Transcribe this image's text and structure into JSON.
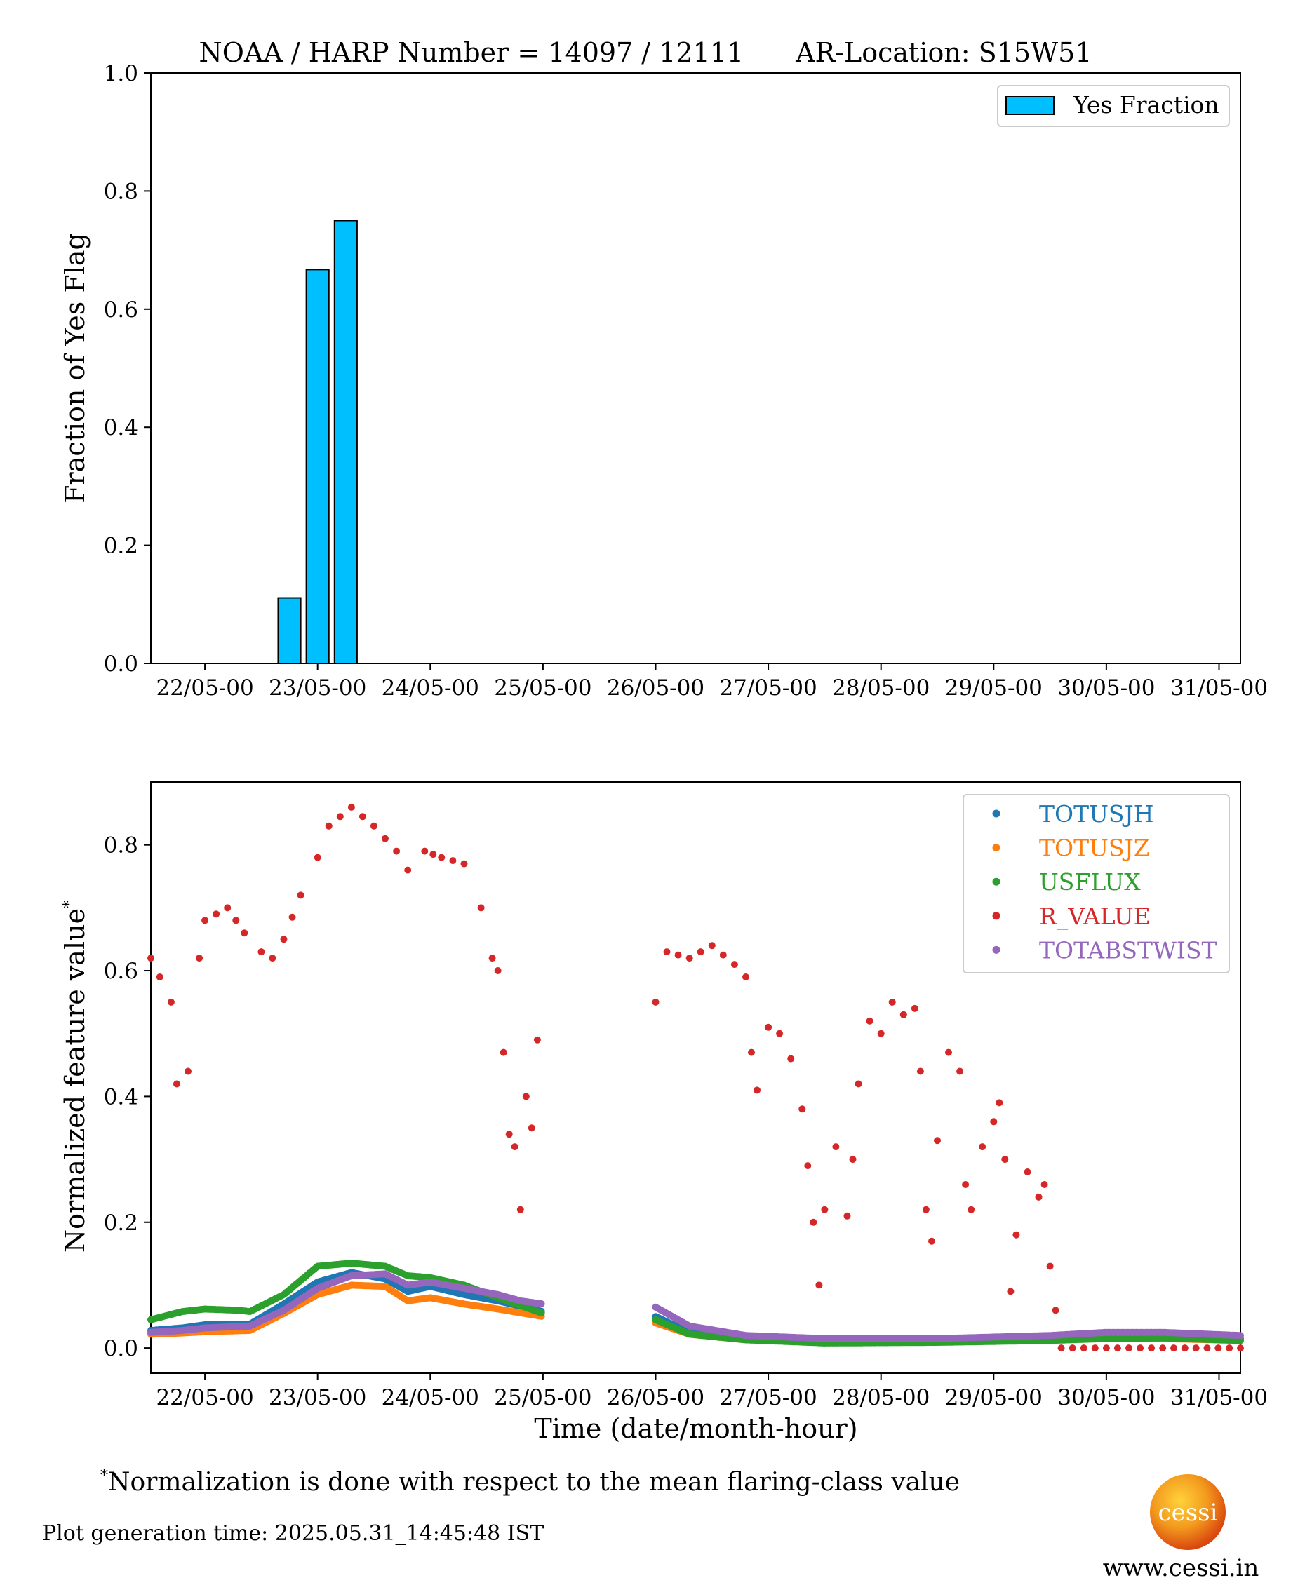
{
  "title": {
    "harp": "NOAA / HARP Number = 14097 / 12111",
    "location": "AR-Location: S15W51"
  },
  "footnote": {
    "marker": "*",
    "text": "Normalization is done with respect to the mean flaring-class value"
  },
  "generation_time": "Plot generation time: 2025.05.31_14:45:48 IST",
  "logo": {
    "text": "cessi",
    "url": "www.cessi.in",
    "colors": [
      "#ffd23a",
      "#f39a1e",
      "#d9470f"
    ]
  },
  "chart_data": [
    {
      "type": "bar",
      "xlabel": "",
      "ylabel": "Fraction of Yes Flag",
      "ylim": [
        0,
        1.0
      ],
      "yticks": [
        "0.0",
        "0.2",
        "0.4",
        "0.6",
        "0.8",
        "1.0"
      ],
      "xlim_days": [
        21.52,
        31.19
      ],
      "xticks": [
        "22/05-00",
        "23/05-00",
        "24/05-00",
        "25/05-00",
        "26/05-00",
        "27/05-00",
        "28/05-00",
        "29/05-00",
        "30/05-00",
        "31/05-00"
      ],
      "legend": {
        "label": "Yes Fraction",
        "position": "upper right"
      },
      "color": "#00bfff",
      "bars": [
        {
          "x": "22/05-18",
          "value": 0.111
        },
        {
          "x": "23/05-00",
          "value": 0.667
        },
        {
          "x": "23/05-06",
          "value": 0.75
        }
      ]
    },
    {
      "type": "scatter",
      "xlabel": "Time (date/month-hour)",
      "ylabel": "Normalized feature value",
      "ylabel_mark": "*",
      "ylim": [
        -0.04,
        0.9
      ],
      "yticks": [
        "0.0",
        "0.2",
        "0.4",
        "0.6",
        "0.8"
      ],
      "xlim_days": [
        21.52,
        31.19
      ],
      "xticks": [
        "22/05-00",
        "23/05-00",
        "24/05-00",
        "25/05-00",
        "26/05-00",
        "27/05-00",
        "28/05-00",
        "29/05-00",
        "30/05-00",
        "31/05-00"
      ],
      "gap": [
        "25/05-00",
        "26/05-00"
      ],
      "legend_position": "upper right",
      "series": [
        {
          "name": "TOTUSJH",
          "color": "#1f77b4",
          "points": [
            [
              21.52,
              0.028
            ],
            [
              21.8,
              0.032
            ],
            [
              22.0,
              0.037
            ],
            [
              22.4,
              0.038
            ],
            [
              22.7,
              0.07
            ],
            [
              23.0,
              0.105
            ],
            [
              23.3,
              0.12
            ],
            [
              23.6,
              0.11
            ],
            [
              23.8,
              0.09
            ],
            [
              24.0,
              0.098
            ],
            [
              24.3,
              0.085
            ],
            [
              24.6,
              0.075
            ],
            [
              25.0,
              0.058
            ],
            [
              26.0,
              0.05
            ],
            [
              26.3,
              0.025
            ],
            [
              26.8,
              0.015
            ],
            [
              27.5,
              0.01
            ],
            [
              28.5,
              0.012
            ],
            [
              29.5,
              0.015
            ],
            [
              30.0,
              0.02
            ],
            [
              30.5,
              0.018
            ],
            [
              31.19,
              0.015
            ]
          ]
        },
        {
          "name": "TOTUSJZ",
          "color": "#ff7f0e",
          "points": [
            [
              21.52,
              0.022
            ],
            [
              21.8,
              0.024
            ],
            [
              22.0,
              0.026
            ],
            [
              22.4,
              0.028
            ],
            [
              22.7,
              0.055
            ],
            [
              23.0,
              0.085
            ],
            [
              23.3,
              0.1
            ],
            [
              23.6,
              0.098
            ],
            [
              23.8,
              0.075
            ],
            [
              24.0,
              0.08
            ],
            [
              24.3,
              0.07
            ],
            [
              24.6,
              0.062
            ],
            [
              25.0,
              0.05
            ],
            [
              26.0,
              0.04
            ],
            [
              26.3,
              0.022
            ],
            [
              26.8,
              0.013
            ],
            [
              27.5,
              0.009
            ],
            [
              28.5,
              0.01
            ],
            [
              29.5,
              0.013
            ],
            [
              30.0,
              0.016
            ],
            [
              30.5,
              0.015
            ],
            [
              31.19,
              0.012
            ]
          ]
        },
        {
          "name": "USFLUX",
          "color": "#2ca02c",
          "points": [
            [
              21.52,
              0.045
            ],
            [
              21.8,
              0.058
            ],
            [
              22.0,
              0.062
            ],
            [
              22.3,
              0.06
            ],
            [
              22.4,
              0.058
            ],
            [
              22.7,
              0.085
            ],
            [
              23.0,
              0.13
            ],
            [
              23.3,
              0.135
            ],
            [
              23.6,
              0.13
            ],
            [
              23.8,
              0.115
            ],
            [
              24.0,
              0.112
            ],
            [
              24.3,
              0.1
            ],
            [
              24.6,
              0.08
            ],
            [
              25.0,
              0.055
            ],
            [
              26.0,
              0.045
            ],
            [
              26.3,
              0.022
            ],
            [
              26.8,
              0.013
            ],
            [
              27.5,
              0.008
            ],
            [
              28.5,
              0.009
            ],
            [
              29.5,
              0.012
            ],
            [
              30.0,
              0.015
            ],
            [
              30.5,
              0.016
            ],
            [
              31.19,
              0.012
            ]
          ]
        },
        {
          "name": "R_VALUE",
          "color": "#d62728",
          "points": [
            [
              21.52,
              0.62
            ],
            [
              21.6,
              0.59
            ],
            [
              21.7,
              0.55
            ],
            [
              21.75,
              0.42
            ],
            [
              21.85,
              0.44
            ],
            [
              21.95,
              0.62
            ],
            [
              22.0,
              0.68
            ],
            [
              22.2,
              0.7
            ],
            [
              22.35,
              0.66
            ],
            [
              22.5,
              0.63
            ],
            [
              22.6,
              0.62
            ],
            [
              22.7,
              0.65
            ],
            [
              22.85,
              0.72
            ],
            [
              23.0,
              0.78
            ],
            [
              23.1,
              0.83
            ],
            [
              23.3,
              0.86
            ],
            [
              23.5,
              0.83
            ],
            [
              23.7,
              0.79
            ],
            [
              23.8,
              0.76
            ],
            [
              23.95,
              0.79
            ],
            [
              24.1,
              0.78
            ],
            [
              24.3,
              0.77
            ],
            [
              24.45,
              0.7
            ],
            [
              24.55,
              0.62
            ],
            [
              24.6,
              0.6
            ],
            [
              24.65,
              0.47
            ],
            [
              24.7,
              0.34
            ],
            [
              24.75,
              0.32
            ],
            [
              24.8,
              0.22
            ],
            [
              24.85,
              0.4
            ],
            [
              24.9,
              0.35
            ],
            [
              24.95,
              0.49
            ],
            [
              25.0,
              0.5
            ],
            [
              26.0,
              0.55
            ],
            [
              26.1,
              0.63
            ],
            [
              26.3,
              0.62
            ],
            [
              26.5,
              0.64
            ],
            [
              26.7,
              0.61
            ],
            [
              26.8,
              0.59
            ],
            [
              26.85,
              0.47
            ],
            [
              26.9,
              0.41
            ],
            [
              27.0,
              0.51
            ],
            [
              27.1,
              0.5
            ],
            [
              27.2,
              0.46
            ],
            [
              27.3,
              0.38
            ],
            [
              27.35,
              0.29
            ],
            [
              27.4,
              0.2
            ],
            [
              27.45,
              0.1
            ],
            [
              27.5,
              0.22
            ],
            [
              27.6,
              0.32
            ],
            [
              27.7,
              0.21
            ],
            [
              27.75,
              0.3
            ],
            [
              27.8,
              0.42
            ],
            [
              27.9,
              0.52
            ],
            [
              28.0,
              0.5
            ],
            [
              28.1,
              0.55
            ],
            [
              28.2,
              0.53
            ],
            [
              28.3,
              0.54
            ],
            [
              28.35,
              0.44
            ],
            [
              28.4,
              0.22
            ],
            [
              28.45,
              0.17
            ],
            [
              28.5,
              0.33
            ],
            [
              28.6,
              0.47
            ],
            [
              28.7,
              0.44
            ],
            [
              28.75,
              0.26
            ],
            [
              28.8,
              0.22
            ],
            [
              28.9,
              0.32
            ],
            [
              29.0,
              0.36
            ],
            [
              29.05,
              0.39
            ],
            [
              29.1,
              0.3
            ],
            [
              29.15,
              0.09
            ],
            [
              29.2,
              0.18
            ],
            [
              29.3,
              0.28
            ],
            [
              29.4,
              0.24
            ],
            [
              29.45,
              0.26
            ],
            [
              29.5,
              0.13
            ],
            [
              29.55,
              0.06
            ],
            [
              29.6,
              0.0
            ],
            [
              30.0,
              0.0
            ],
            [
              30.5,
              0.0
            ],
            [
              31.19,
              0.0
            ]
          ]
        },
        {
          "name": "TOTABSTWIST",
          "color": "#9467bd",
          "points": [
            [
              21.52,
              0.025
            ],
            [
              21.8,
              0.028
            ],
            [
              22.0,
              0.032
            ],
            [
              22.4,
              0.035
            ],
            [
              22.7,
              0.06
            ],
            [
              23.0,
              0.095
            ],
            [
              23.3,
              0.115
            ],
            [
              23.6,
              0.118
            ],
            [
              23.8,
              0.1
            ],
            [
              24.0,
              0.105
            ],
            [
              24.3,
              0.095
            ],
            [
              24.6,
              0.085
            ],
            [
              24.8,
              0.075
            ],
            [
              25.0,
              0.07
            ],
            [
              26.0,
              0.065
            ],
            [
              26.3,
              0.035
            ],
            [
              26.8,
              0.02
            ],
            [
              27.5,
              0.015
            ],
            [
              28.5,
              0.015
            ],
            [
              29.5,
              0.02
            ],
            [
              30.0,
              0.025
            ],
            [
              30.5,
              0.025
            ],
            [
              31.19,
              0.02
            ]
          ]
        }
      ]
    }
  ]
}
